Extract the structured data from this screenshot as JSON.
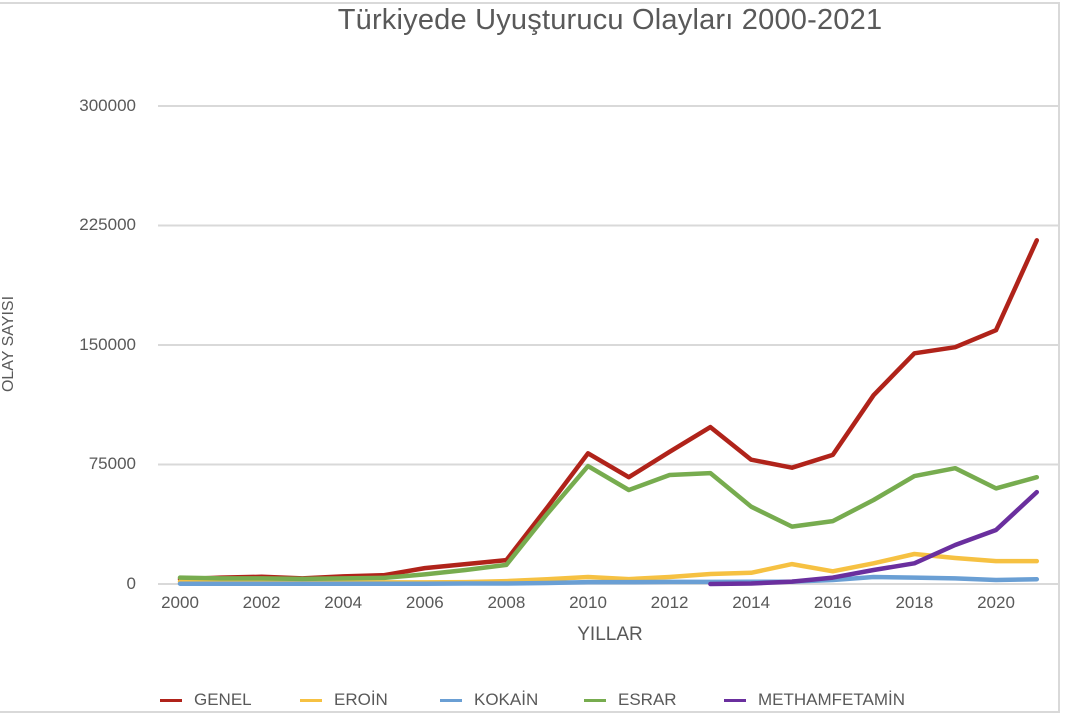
{
  "chart_data": {
    "type": "line",
    "title": "Türkiyede Uyuşturucu Olayları 2000-2021",
    "xlabel": "YILLAR",
    "ylabel": "OLAY SAYISI",
    "ylim": [
      0,
      300000
    ],
    "yticks": [
      "0",
      "75000",
      "150000",
      "225000",
      "300000"
    ],
    "xticks": [
      "2000",
      "2002",
      "2004",
      "2006",
      "2008",
      "2010",
      "2012",
      "2014",
      "2016",
      "2018",
      "2020"
    ],
    "grid": true,
    "legend_position": "bottom",
    "x": [
      2000,
      2001,
      2002,
      2003,
      2004,
      2005,
      2006,
      2007,
      2008,
      2009,
      2010,
      2011,
      2012,
      2013,
      2014,
      2015,
      2016,
      2017,
      2018,
      2019,
      2020,
      2021
    ],
    "series": [
      {
        "name": "GENEL",
        "color": "#b0231a",
        "values": [
          3000,
          4000,
          4500,
          3500,
          4800,
          5500,
          10000,
          12500,
          15000,
          48000,
          82000,
          67000,
          83000,
          98500,
          78000,
          73000,
          81000,
          118500,
          144800,
          148600,
          159300,
          215700
        ]
      },
      {
        "name": "EROİN",
        "color": "#f6c142",
        "values": [
          1500,
          1200,
          1200,
          1000,
          1000,
          1000,
          1000,
          1200,
          1800,
          3000,
          4400,
          3100,
          4400,
          6300,
          7000,
          12500,
          8000,
          13000,
          18800,
          16300,
          14400,
          14400
        ]
      },
      {
        "name": "KOKAİN",
        "color": "#6a9fd4",
        "values": [
          200,
          200,
          200,
          200,
          200,
          200,
          200,
          300,
          300,
          600,
          1200,
          1200,
          1300,
          1300,
          1400,
          1500,
          2500,
          4400,
          4000,
          3500,
          2500,
          3000
        ]
      },
      {
        "name": "ESRAR",
        "color": "#77ac4f",
        "values": [
          4000,
          3500,
          3500,
          3200,
          3500,
          3800,
          6000,
          8800,
          12000,
          44000,
          74000,
          59000,
          68400,
          69600,
          48500,
          36000,
          39500,
          52700,
          67700,
          72700,
          60000,
          67000
        ]
      },
      {
        "name": "METHAMFETAMİN",
        "color": "#6a2f9e",
        "values": [
          null,
          null,
          null,
          null,
          null,
          null,
          null,
          null,
          null,
          null,
          null,
          null,
          null,
          0,
          300,
          1500,
          4000,
          8800,
          13000,
          24500,
          33900,
          57700
        ]
      }
    ]
  },
  "legend": [
    {
      "label": "GENEL",
      "color": "#b0231a"
    },
    {
      "label": "EROİN",
      "color": "#f6c142"
    },
    {
      "label": "KOKAİN",
      "color": "#6a9fd4"
    },
    {
      "label": "ESRAR",
      "color": "#77ac4f"
    },
    {
      "label": "METHAMFETAMİN",
      "color": "#6a2f9e"
    }
  ]
}
